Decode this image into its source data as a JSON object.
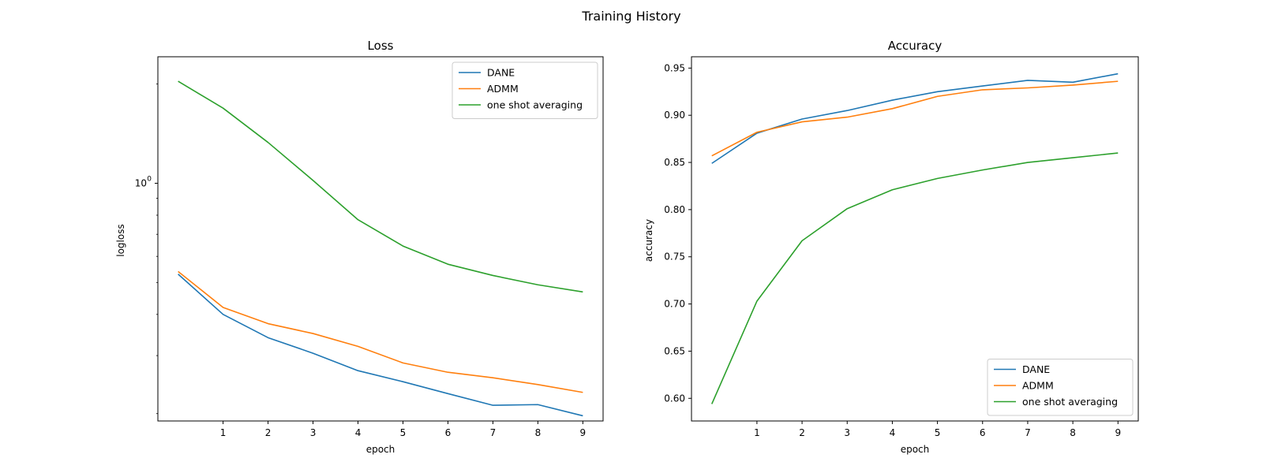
{
  "figure": {
    "suptitle": "Training History"
  },
  "chart_data": [
    {
      "type": "line",
      "title": "Loss",
      "xlabel": "epoch",
      "ylabel": "logloss",
      "yscale": "log",
      "x": [
        0,
        1,
        2,
        3,
        4,
        5,
        6,
        7,
        8,
        9
      ],
      "xticks": [
        "1",
        "2",
        "3",
        "4",
        "5",
        "6",
        "7",
        "8",
        "9"
      ],
      "yticks": [
        {
          "value": 1.0,
          "base": "10",
          "exp": "0"
        }
      ],
      "xlim": [
        -0.45,
        9.45
      ],
      "ylim": [
        0.19,
        2.42
      ],
      "grid": false,
      "legend": "upper right",
      "series": [
        {
          "name": "DANE",
          "color": "#1f77b4",
          "values": [
            0.53,
            0.4,
            0.34,
            0.305,
            0.27,
            0.25,
            0.23,
            0.212,
            0.213,
            0.197
          ]
        },
        {
          "name": "ADMM",
          "color": "#ff7f0e",
          "values": [
            0.54,
            0.42,
            0.375,
            0.35,
            0.32,
            0.285,
            0.267,
            0.257,
            0.245,
            0.232
          ]
        },
        {
          "name": "one shot averaging",
          "color": "#2ca02c",
          "values": [
            2.04,
            1.69,
            1.33,
            1.02,
            0.775,
            0.645,
            0.568,
            0.525,
            0.492,
            0.468
          ]
        }
      ]
    },
    {
      "type": "line",
      "title": "Accuracy",
      "xlabel": "epoch",
      "ylabel": "accuracy",
      "x": [
        0,
        1,
        2,
        3,
        4,
        5,
        6,
        7,
        8,
        9
      ],
      "xticks": [
        "1",
        "2",
        "3",
        "4",
        "5",
        "6",
        "7",
        "8",
        "9"
      ],
      "yticks": [
        "0.60",
        "0.65",
        "0.70",
        "0.75",
        "0.80",
        "0.85",
        "0.90",
        "0.95"
      ],
      "xlim": [
        -0.45,
        9.45
      ],
      "ylim": [
        0.576,
        0.962
      ],
      "grid": false,
      "legend": "lower right",
      "series": [
        {
          "name": "DANE",
          "color": "#1f77b4",
          "values": [
            0.849,
            0.881,
            0.896,
            0.905,
            0.916,
            0.925,
            0.931,
            0.937,
            0.935,
            0.944
          ]
        },
        {
          "name": "ADMM",
          "color": "#ff7f0e",
          "values": [
            0.857,
            0.882,
            0.893,
            0.898,
            0.907,
            0.92,
            0.927,
            0.929,
            0.932,
            0.936
          ]
        },
        {
          "name": "one shot averaging",
          "color": "#2ca02c",
          "values": [
            0.594,
            0.703,
            0.767,
            0.801,
            0.821,
            0.833,
            0.842,
            0.85,
            0.855,
            0.86
          ]
        }
      ]
    }
  ]
}
